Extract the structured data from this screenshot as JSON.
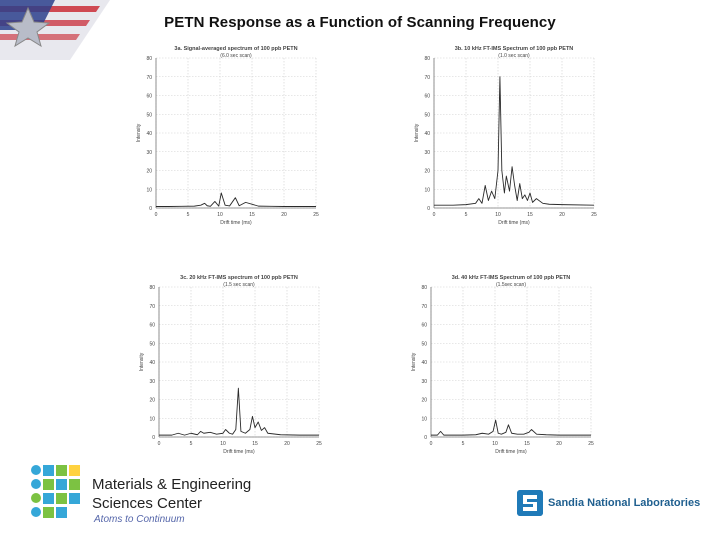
{
  "slide": {
    "title": "PETN Response as a Function of Scanning Frequency"
  },
  "footer": {
    "center_line1": "Materials & Engineering",
    "center_line2": "Sciences Center",
    "tagline": "Atoms to Continuum",
    "lab_name": "Sandia National Laboratories"
  },
  "colors": {
    "trace": "#2a2a2a",
    "grid": "#cfcfcf",
    "logo_green": "#7cc242",
    "logo_blue": "#35a7d8",
    "sandia_blue": "#1f7ab8"
  },
  "chart_data": [
    {
      "id": "3a",
      "type": "line",
      "title": "3a. Signal-averaged spectrum of 100 ppb PETN",
      "subtitle": "(6.0 sec scan)",
      "xlabel": "Drift time (ms)",
      "ylabel": "Intensity",
      "xlim": [
        0,
        25
      ],
      "ylim": [
        0,
        80
      ],
      "xticks": [
        0,
        5,
        10,
        15,
        20,
        25
      ],
      "yticks": [
        0,
        10,
        20,
        30,
        40,
        50,
        60,
        70,
        80
      ],
      "grid": true,
      "x": [
        0,
        2,
        4,
        6,
        7,
        7.6,
        8,
        8.5,
        9.2,
        9.8,
        10.2,
        10.8,
        11.5,
        12.4,
        13,
        14,
        16,
        18,
        20,
        22,
        25
      ],
      "y": [
        0.8,
        0.8,
        0.9,
        1.0,
        1.5,
        2.5,
        1.2,
        0.9,
        3.5,
        1.0,
        8.0,
        1.5,
        1.1,
        5.5,
        1.2,
        3.0,
        1.0,
        0.9,
        0.8,
        0.8,
        0.8
      ]
    },
    {
      "id": "3b",
      "type": "line",
      "title": "3b. 10 kHz FT-IMS Spectrum of 100 ppb PETN",
      "subtitle": "(1.0 sec scan)",
      "xlabel": "Drift time (ms)",
      "ylabel": "Intensity",
      "xlim": [
        0,
        25
      ],
      "ylim": [
        0,
        80
      ],
      "xticks": [
        0,
        5,
        10,
        15,
        20,
        25
      ],
      "yticks": [
        0,
        10,
        20,
        30,
        40,
        50,
        60,
        70,
        80
      ],
      "grid": true,
      "x": [
        0,
        3,
        5,
        6.5,
        7,
        7.5,
        8,
        8.5,
        9,
        9.5,
        10,
        10.3,
        10.6,
        11,
        11.3,
        11.8,
        12.2,
        12.6,
        13,
        13.4,
        13.8,
        14.2,
        14.6,
        15,
        15.4,
        16,
        17,
        18,
        20,
        25
      ],
      "y": [
        1.5,
        1.5,
        1.8,
        2.5,
        5.0,
        2.5,
        12.0,
        4.0,
        9.0,
        5.0,
        20.0,
        70.0,
        20.0,
        8.0,
        17.0,
        9.0,
        22.0,
        12.0,
        4.0,
        13.0,
        5.0,
        7.0,
        4.0,
        8.0,
        3.0,
        5.0,
        2.5,
        2.0,
        1.8,
        1.5
      ]
    },
    {
      "id": "3c",
      "type": "line",
      "title": "3c. 20 kHz FT-IMS spectrum of 100 ppb PETN",
      "subtitle": "(1.5 sec scan)",
      "xlabel": "Drift time (ms)",
      "ylabel": "Intensity",
      "xlim": [
        0,
        25
      ],
      "ylim": [
        0,
        80
      ],
      "xticks": [
        0,
        5,
        10,
        15,
        20,
        25
      ],
      "yticks": [
        0,
        10,
        20,
        30,
        40,
        50,
        60,
        70,
        80
      ],
      "grid": true,
      "x": [
        0,
        2,
        3,
        4,
        5,
        6,
        6.5,
        7,
        8,
        9,
        10,
        10.4,
        11,
        11.5,
        12,
        12.4,
        12.8,
        13.5,
        14.2,
        14.6,
        15,
        15.5,
        16,
        16.5,
        17,
        19,
        22,
        25
      ],
      "y": [
        1.0,
        1.0,
        2.0,
        1.0,
        2.0,
        1.2,
        3.0,
        2.0,
        2.5,
        1.5,
        2.0,
        4.0,
        2.0,
        1.5,
        4.0,
        26.0,
        3.0,
        2.0,
        4.0,
        11.0,
        5.0,
        8.0,
        3.5,
        5.0,
        2.0,
        1.2,
        1.0,
        1.0
      ]
    },
    {
      "id": "3d",
      "type": "line",
      "title": "3d. 40 kHz FT-IMS Spectrum of 100 ppb PETN",
      "subtitle": "(1.5sec scan)",
      "xlabel": "Drift time (ms)",
      "ylabel": "Intensity",
      "xlim": [
        0,
        25
      ],
      "ylim": [
        0,
        80
      ],
      "xticks": [
        0,
        5,
        10,
        15,
        20,
        25
      ],
      "yticks": [
        0,
        10,
        20,
        30,
        40,
        50,
        60,
        70,
        80
      ],
      "grid": true,
      "x": [
        0,
        1,
        1.5,
        2,
        3,
        5,
        7,
        8,
        9,
        9.7,
        10.1,
        10.5,
        11,
        11.7,
        12.1,
        12.6,
        13.5,
        14.5,
        15.3,
        15.7,
        16.5,
        18,
        20,
        25
      ],
      "y": [
        1.0,
        1.0,
        3.0,
        1.0,
        1.0,
        1.0,
        1.2,
        2.0,
        1.5,
        3.0,
        9.0,
        2.0,
        1.5,
        2.5,
        6.5,
        2.0,
        1.5,
        1.5,
        2.5,
        4.0,
        1.5,
        1.2,
        1.0,
        1.0
      ]
    }
  ]
}
